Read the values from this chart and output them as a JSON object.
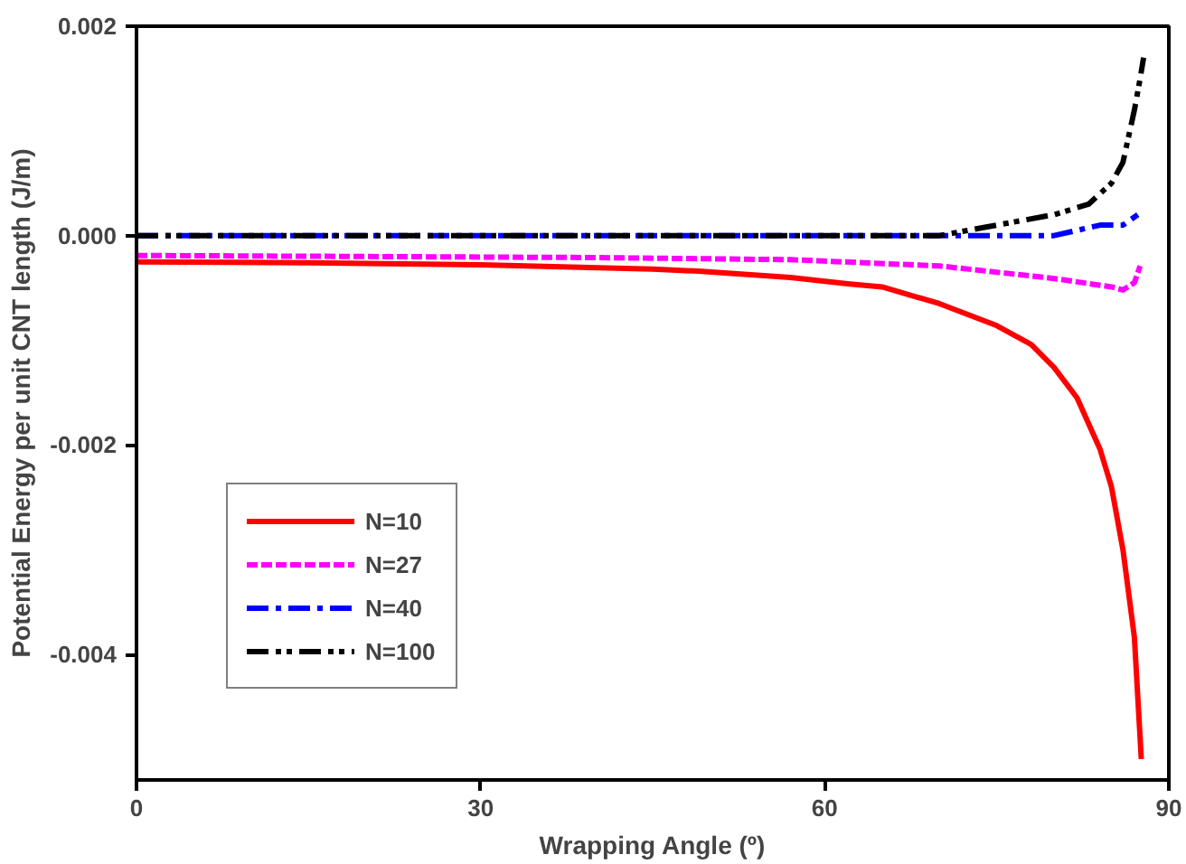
{
  "chart_data": {
    "type": "line",
    "xlabel": "Wrapping Angle (º)",
    "ylabel": "Potential Energy per unit CNT length (J/m)",
    "xlim": [
      0,
      90
    ],
    "xticks": [
      0,
      30,
      60,
      90
    ],
    "ylim": [
      -0.0052,
      0.002
    ],
    "yticks": [
      {
        "value": 0.002,
        "label": "0.002"
      },
      {
        "value": 0,
        "label": "0.000"
      },
      {
        "value": -0.002,
        "label": "-0.002"
      },
      {
        "value": -0.004,
        "label": "-0.004"
      }
    ],
    "grid": false,
    "legend": "bottom left",
    "marker": "none",
    "series": [
      {
        "name": "N=10",
        "color": "#ff0000",
        "line_style": "solid",
        "x": [
          0,
          15,
          30,
          45,
          49,
          57,
          62,
          65,
          70,
          75,
          78,
          80,
          82,
          84,
          85,
          86,
          87,
          87.6
        ],
        "values": [
          -0.00025,
          -0.00026,
          -0.00028,
          -0.00032,
          -0.00034,
          -0.0004,
          -0.00046,
          -0.00049,
          -0.00065,
          -0.00086,
          -0.00104,
          -0.00126,
          -0.00155,
          -0.00204,
          -0.0024,
          -0.003,
          -0.00384,
          -0.005
        ]
      },
      {
        "name": "N=27",
        "color": "#ff00ff",
        "line_style": "dashed",
        "x": [
          0,
          20,
          40,
          57,
          70,
          80,
          85,
          86,
          87,
          87.5
        ],
        "values": [
          -0.00019,
          -0.0002,
          -0.00021,
          -0.00023,
          -0.00029,
          -0.00041,
          -0.00049,
          -0.00052,
          -0.00045,
          -0.00029
        ]
      },
      {
        "name": "N=40",
        "color": "#0000ff",
        "line_style": "dashdot",
        "x": [
          0,
          30,
          60,
          70,
          75,
          80,
          84,
          86,
          87.3
        ],
        "values": [
          0,
          0,
          0,
          0,
          0,
          0,
          0.0001,
          0.0001,
          0.0002
        ]
      },
      {
        "name": "N=100",
        "color": "#000000",
        "line_style": "dashdotdot",
        "x": [
          0,
          30,
          55,
          65,
          70,
          75,
          80,
          83,
          85,
          86,
          87,
          87.5,
          87.8
        ],
        "values": [
          0,
          0,
          0,
          0,
          0,
          0.0001,
          0.0002,
          0.0003,
          0.0005,
          0.0007,
          0.0012,
          0.0015,
          0.0017
        ]
      }
    ]
  }
}
